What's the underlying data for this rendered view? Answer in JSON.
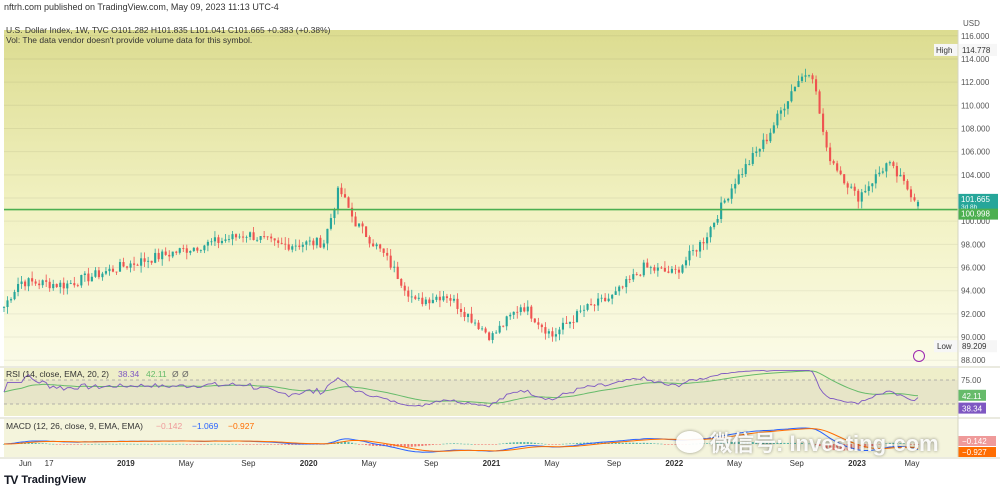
{
  "header": {
    "publisher": "nftrh.com published on TradingView.com, May 09, 2023 11:13 UTC-4"
  },
  "legend": {
    "title_line": "U.S. Dollar Index, 1W, TVC  O101.282  H101.835  L101.041  C101.665  +0.383 (+0.38%)",
    "vol_note": "Vol: The data vendor doesn't provide volume data for this symbol.",
    "rsi_label": "RSI (14, close, EMA, 20, 2)",
    "rsi_values": [
      "38.34",
      "42.11",
      "Ø",
      "Ø"
    ],
    "macd_label": "MACD (12, 26, close, 9, EMA, EMA)",
    "macd_values": [
      "−0.142",
      "−1.069",
      "−0.927"
    ]
  },
  "price_axis": {
    "currency": "USD",
    "ticks": [
      "116.000",
      "114.000",
      "112.000",
      "110.000",
      "108.000",
      "106.000",
      "104.000",
      "102.000",
      "100.000",
      "98.000",
      "96.000",
      "94.000",
      "92.000",
      "90.000",
      "88.000"
    ],
    "high_label": "High",
    "high_value": "114.778",
    "low_label": "Low",
    "low_value": "89.209",
    "last_price": "101.665",
    "countdown": "3d 8h",
    "support_value": "100.998"
  },
  "rsi_axis": {
    "ticks": [
      "75.00"
    ],
    "last_ema": "42.11",
    "last_rsi": "38.34"
  },
  "macd_axis": {
    "last_hist": "−0.142",
    "last_signal": "−0.927"
  },
  "time_axis": {
    "labels": [
      "Jun",
      "17",
      "2019",
      "May",
      "Sep",
      "2020",
      "May",
      "Sep",
      "2021",
      "May",
      "Sep",
      "2022",
      "May",
      "Sep",
      "2023",
      "May"
    ]
  },
  "footer": {
    "brand": "TradingView"
  },
  "watermark": {
    "text": "微信号: Investing-com"
  },
  "colors": {
    "up": "#26a69a",
    "down": "#ef5350",
    "support_line": "#4caf50",
    "rsi_line": "#7e57c2",
    "rsi_ema": "#66bb6a",
    "macd_line": "#2962ff",
    "signal_line": "#ff6d00"
  },
  "chart_data": {
    "type": "candlestick",
    "title": "U.S. Dollar Index, 1W, TVC",
    "symbol": "U.S. Dollar Index",
    "interval": "1W",
    "ohlc_last": {
      "open": 101.282,
      "high": 101.835,
      "low": 101.041,
      "close": 101.665,
      "change": 0.383,
      "change_pct": 0.38
    },
    "ylim": [
      87.5,
      116.5
    ],
    "all_time_high_in_view": 114.778,
    "all_time_low_in_view": 89.209,
    "support_level": 100.998,
    "x_range": [
      "2018-05",
      "2023-05"
    ],
    "weekly_close_path": [
      {
        "date": "2018-05",
        "close": 92.6
      },
      {
        "date": "2018-06",
        "close": 94.8
      },
      {
        "date": "2018-09",
        "close": 94.5
      },
      {
        "date": "2019-01",
        "close": 96.2
      },
      {
        "date": "2019-05",
        "close": 97.6
      },
      {
        "date": "2019-09",
        "close": 98.9
      },
      {
        "date": "2019-11",
        "close": 97.9
      },
      {
        "date": "2020-02",
        "close": 98.2
      },
      {
        "date": "2020-03",
        "close": 102.8
      },
      {
        "date": "2020-04",
        "close": 100.0
      },
      {
        "date": "2020-06",
        "close": 97.0
      },
      {
        "date": "2020-08",
        "close": 93.0
      },
      {
        "date": "2020-10",
        "close": 93.7
      },
      {
        "date": "2021-01",
        "close": 90.0
      },
      {
        "date": "2021-03",
        "close": 92.8
      },
      {
        "date": "2021-05",
        "close": 90.1
      },
      {
        "date": "2021-07",
        "close": 92.3
      },
      {
        "date": "2021-09",
        "close": 93.5
      },
      {
        "date": "2021-11",
        "close": 96.0
      },
      {
        "date": "2022-01",
        "close": 95.5
      },
      {
        "date": "2022-03",
        "close": 98.5
      },
      {
        "date": "2022-05",
        "close": 103.5
      },
      {
        "date": "2022-07",
        "close": 107.0
      },
      {
        "date": "2022-09",
        "close": 112.0
      },
      {
        "date": "2022-10",
        "close": 113.2
      },
      {
        "date": "2022-11",
        "close": 106.0
      },
      {
        "date": "2023-01",
        "close": 102.0
      },
      {
        "date": "2023-03",
        "close": 105.0
      },
      {
        "date": "2023-05",
        "close": 101.665
      }
    ],
    "rsi": {
      "period": 14,
      "last": 38.34,
      "ema": 42.11,
      "band_top": 75,
      "band_bottom": 25
    },
    "macd": {
      "fast": 12,
      "slow": 26,
      "signal": 9,
      "histogram": -0.142,
      "macd": -1.069,
      "signal_value": -0.927
    }
  }
}
